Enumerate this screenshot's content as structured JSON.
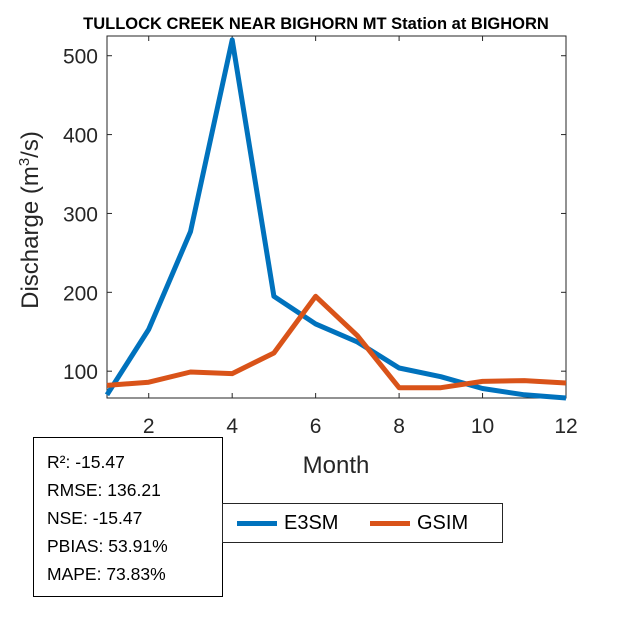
{
  "chart_data": {
    "type": "line",
    "title": "TULLOCK CREEK NEAR BIGHORN MT  Station at  BIGHORN",
    "xlabel": "Month",
    "ylabel": "Discharge (m³/s)",
    "ylabel_base": "Discharge (m",
    "ylabel_sup": "3",
    "ylabel_tail": "/s)",
    "xlim": [
      1,
      12
    ],
    "ylim": [
      66,
      525
    ],
    "xticks": [
      2,
      4,
      6,
      8,
      10,
      12
    ],
    "yticks": [
      100,
      200,
      300,
      400,
      500
    ],
    "x": [
      1,
      2,
      3,
      4,
      5,
      6,
      7,
      8,
      9,
      10,
      11,
      12
    ],
    "series": [
      {
        "name": "E3SM",
        "color": "#0072BD",
        "values": [
          70,
          153,
          277,
          520,
          195,
          160,
          137,
          104,
          93,
          78,
          70,
          66
        ]
      },
      {
        "name": "GSIM",
        "color": "#D95319",
        "values": [
          82,
          86,
          99,
          97,
          123,
          195,
          145,
          79,
          79,
          87,
          88,
          85
        ]
      }
    ]
  },
  "stats": {
    "r2": "R²: -15.47",
    "rmse": "RMSE: 136.21",
    "nse": "NSE: -15.47",
    "pbias": "PBIAS: 53.91%",
    "mape": "MAPE: 73.83%"
  },
  "legend": {
    "e3sm_label": "E3SM",
    "gsim_label": "GSIM",
    "e3sm_color": "#0072BD",
    "gsim_color": "#D95319"
  }
}
